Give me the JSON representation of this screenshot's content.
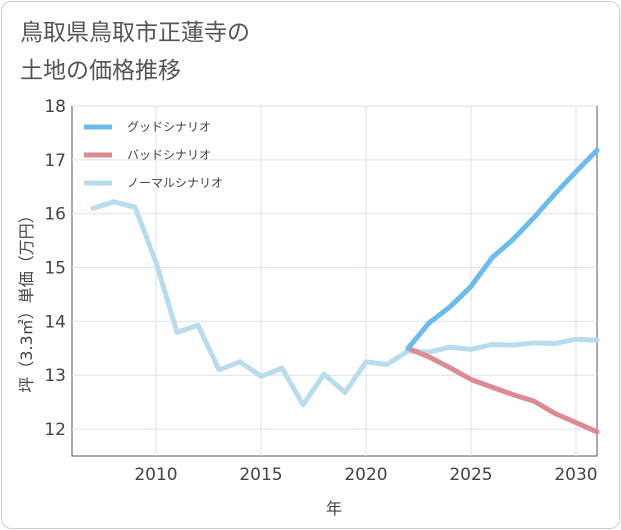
{
  "title_lines": [
    "鳥取県鳥取市正蓮寺の",
    "土地の価格推移"
  ],
  "chart_data": {
    "type": "line",
    "title": "鳥取県鳥取市正蓮寺の土地の価格推移",
    "xlabel": "年",
    "ylabel": "坪（3.3㎡）単価（万円）",
    "xlim": [
      2006,
      2031
    ],
    "ylim": [
      11.5,
      18
    ],
    "x_ticks": [
      "2010",
      "2015",
      "2020",
      "2025",
      "2030"
    ],
    "y_ticks": [
      "12",
      "13",
      "14",
      "15",
      "16",
      "17",
      "18"
    ],
    "grid": true,
    "legend_position": "top-left",
    "series": [
      {
        "name": "グッドシナリオ",
        "color": "#6cbbea",
        "x": [
          2022,
          2023,
          2024,
          2025,
          2026,
          2027,
          2028,
          2029,
          2030,
          2031
        ],
        "values": [
          13.5,
          13.97,
          14.27,
          14.65,
          15.18,
          15.52,
          15.93,
          16.37,
          16.78,
          17.18
        ]
      },
      {
        "name": "バッドシナリオ",
        "color": "#dd8b92",
        "x": [
          2022,
          2023,
          2024,
          2025,
          2026,
          2027,
          2028,
          2029,
          2030,
          2031
        ],
        "values": [
          13.5,
          13.34,
          13.14,
          12.92,
          12.78,
          12.64,
          12.52,
          12.29,
          12.12,
          11.95
        ]
      },
      {
        "name": "ノーマルシナリオ",
        "color": "#b9dcec",
        "x": [
          2007,
          2008,
          2009,
          2010,
          2011,
          2012,
          2013,
          2014,
          2015,
          2016,
          2017,
          2018,
          2019,
          2020,
          2021,
          2022,
          2023,
          2024,
          2025,
          2026,
          2027,
          2028,
          2029,
          2030,
          2031
        ],
        "values": [
          16.1,
          16.22,
          16.12,
          15.1,
          13.8,
          13.93,
          13.1,
          13.25,
          12.98,
          13.13,
          12.45,
          13.02,
          12.68,
          13.25,
          13.2,
          13.45,
          13.43,
          13.52,
          13.48,
          13.57,
          13.56,
          13.6,
          13.59,
          13.67,
          13.65
        ]
      }
    ]
  }
}
